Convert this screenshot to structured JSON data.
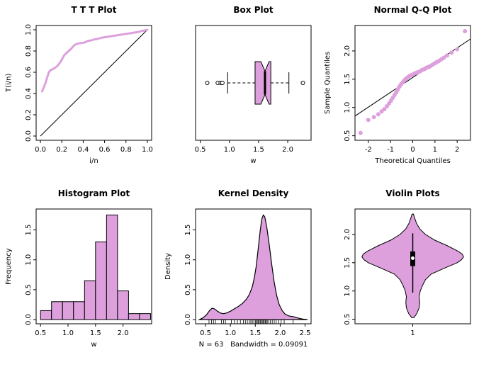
{
  "colors": {
    "accent": "#DDA0DD",
    "axis": "#000000",
    "background": "#ffffff"
  },
  "chart_data": [
    {
      "type": "ttt",
      "title": "T T T Plot",
      "xlabel": "i/n",
      "ylabel": "T(i/n)",
      "xlim": [
        -0.04,
        1.04
      ],
      "ylim": [
        -0.04,
        1.04
      ],
      "xticks": [
        0,
        0.2,
        0.4,
        0.6,
        0.8,
        1
      ],
      "xtick_labels": [
        "0.0",
        "0.2",
        "0.4",
        "0.6",
        "0.8",
        "1.0"
      ],
      "yticks": [
        0,
        0.2,
        0.4,
        0.6,
        0.8,
        1
      ],
      "ytick_labels": [
        "0.0",
        "0.2",
        "0.4",
        "0.6",
        "0.8",
        "1.0"
      ],
      "refline": [
        [
          0,
          0
        ],
        [
          1,
          1
        ]
      ],
      "points": [
        [
          0.016,
          0.42
        ],
        [
          0.032,
          0.46
        ],
        [
          0.048,
          0.5
        ],
        [
          0.063,
          0.55
        ],
        [
          0.079,
          0.6
        ],
        [
          0.095,
          0.62
        ],
        [
          0.127,
          0.635
        ],
        [
          0.159,
          0.66
        ],
        [
          0.19,
          0.7
        ],
        [
          0.222,
          0.76
        ],
        [
          0.254,
          0.79
        ],
        [
          0.286,
          0.82
        ],
        [
          0.317,
          0.855
        ],
        [
          0.349,
          0.87
        ],
        [
          0.381,
          0.875
        ],
        [
          0.413,
          0.88
        ],
        [
          0.444,
          0.895
        ],
        [
          0.476,
          0.9
        ],
        [
          0.508,
          0.91
        ],
        [
          0.54,
          0.915
        ],
        [
          0.571,
          0.925
        ],
        [
          0.603,
          0.93
        ],
        [
          0.635,
          0.935
        ],
        [
          0.667,
          0.94
        ],
        [
          0.698,
          0.945
        ],
        [
          0.73,
          0.95
        ],
        [
          0.762,
          0.955
        ],
        [
          0.794,
          0.96
        ],
        [
          0.825,
          0.965
        ],
        [
          0.857,
          0.97
        ],
        [
          0.889,
          0.975
        ],
        [
          0.921,
          0.98
        ],
        [
          0.952,
          0.99
        ],
        [
          0.984,
          0.995
        ],
        [
          1,
          1
        ]
      ]
    },
    {
      "type": "boxplot",
      "title": "Box Plot",
      "xlabel": "w",
      "ylabel": "",
      "xlim": [
        0.42,
        2.4
      ],
      "ylim": [
        0,
        1
      ],
      "xticks": [
        0.5,
        1,
        1.5,
        2
      ],
      "xtick_labels": [
        "0.5",
        "1.0",
        "1.5",
        "2.0"
      ],
      "yticks": [],
      "ytick_labels": [],
      "stats": {
        "whisker_low": 0.97,
        "q1": 1.44,
        "median": 1.61,
        "notch_low": 1.54,
        "notch_high": 1.68,
        "q3": 1.71,
        "whisker_high": 2.02
      },
      "outliers": [
        0.62,
        0.8,
        0.85,
        0.88,
        2.26
      ]
    },
    {
      "type": "qq",
      "title": "Normal Q-Q Plot",
      "xlabel": "Theoretical Quantiles",
      "ylabel": "Sample Quantiles",
      "xlim": [
        -2.6,
        2.6
      ],
      "ylim": [
        0.42,
        2.45
      ],
      "xticks": [
        -2,
        -1,
        0,
        1,
        2
      ],
      "xtick_labels": [
        "-2",
        "-1",
        "0",
        "1",
        "2"
      ],
      "yticks": [
        0.5,
        1,
        1.5,
        2
      ],
      "ytick_labels": [
        "0.5",
        "1.0",
        "1.5",
        "2.0"
      ],
      "line": {
        "slope": 0.262,
        "intercept": 1.53
      },
      "points": [
        [
          -2.35,
          0.55
        ],
        [
          -2.0,
          0.78
        ],
        [
          -1.75,
          0.83
        ],
        [
          -1.55,
          0.88
        ],
        [
          -1.4,
          0.93
        ],
        [
          -1.28,
          0.97
        ],
        [
          -1.17,
          1.02
        ],
        [
          -1.07,
          1.07
        ],
        [
          -0.98,
          1.12
        ],
        [
          -0.9,
          1.17
        ],
        [
          -0.82,
          1.22
        ],
        [
          -0.74,
          1.27
        ],
        [
          -0.67,
          1.32
        ],
        [
          -0.6,
          1.37
        ],
        [
          -0.53,
          1.41
        ],
        [
          -0.46,
          1.44
        ],
        [
          -0.4,
          1.47
        ],
        [
          -0.33,
          1.5
        ],
        [
          -0.27,
          1.52
        ],
        [
          -0.2,
          1.54
        ],
        [
          -0.14,
          1.56
        ],
        [
          -0.07,
          1.57
        ],
        [
          0.0,
          1.58
        ],
        [
          0.07,
          1.6
        ],
        [
          0.14,
          1.61
        ],
        [
          0.2,
          1.62
        ],
        [
          0.27,
          1.63
        ],
        [
          0.33,
          1.64
        ],
        [
          0.4,
          1.66
        ],
        [
          0.46,
          1.67
        ],
        [
          0.53,
          1.68
        ],
        [
          0.6,
          1.7
        ],
        [
          0.67,
          1.71
        ],
        [
          0.74,
          1.72
        ],
        [
          0.82,
          1.74
        ],
        [
          0.9,
          1.76
        ],
        [
          0.98,
          1.78
        ],
        [
          1.07,
          1.8
        ],
        [
          1.17,
          1.82
        ],
        [
          1.28,
          1.85
        ],
        [
          1.4,
          1.88
        ],
        [
          1.55,
          1.92
        ],
        [
          1.75,
          1.97
        ],
        [
          2.0,
          2.03
        ],
        [
          2.35,
          2.35
        ]
      ]
    },
    {
      "type": "histogram",
      "title": "Histogram Plot",
      "xlabel": "w",
      "ylabel": "Frequency",
      "xlim": [
        0.42,
        2.52
      ],
      "ylim": [
        -0.07,
        1.85
      ],
      "xticks": [
        0.5,
        1,
        1.5,
        2
      ],
      "xtick_labels": [
        "0.5",
        "1.0",
        "1.5",
        "2.0"
      ],
      "yticks": [
        0,
        0.5,
        1,
        1.5
      ],
      "ytick_labels": [
        "0.0",
        "0.5",
        "1.0",
        "1.5"
      ],
      "breaks": [
        0.5,
        0.7,
        0.9,
        1.1,
        1.3,
        1.5,
        1.7,
        1.9,
        2.1,
        2.3,
        2.5
      ],
      "heights": [
        0.15,
        0.3,
        0.3,
        0.3,
        0.65,
        1.3,
        1.75,
        0.48,
        0.1,
        0.1
      ]
    },
    {
      "type": "density",
      "title": "Kernel Density",
      "xlabel": "N = 63   Bandwidth = 0.09091",
      "ylabel": "Density",
      "xlim": [
        0.3,
        2.62
      ],
      "ylim": [
        -0.07,
        1.85
      ],
      "xticks": [
        0.5,
        1,
        1.5,
        2,
        2.5
      ],
      "xtick_labels": [
        "0.5",
        "1.0",
        "1.5",
        "2.0",
        "2.5"
      ],
      "yticks": [
        0,
        0.5,
        1,
        1.5
      ],
      "ytick_labels": [
        "0.0",
        "0.5",
        "1.0",
        "1.5"
      ],
      "curve": [
        [
          0.38,
          0
        ],
        [
          0.45,
          0.03
        ],
        [
          0.52,
          0.08
        ],
        [
          0.58,
          0.15
        ],
        [
          0.63,
          0.19
        ],
        [
          0.68,
          0.18
        ],
        [
          0.74,
          0.14
        ],
        [
          0.8,
          0.11
        ],
        [
          0.86,
          0.1
        ],
        [
          0.92,
          0.11
        ],
        [
          1.0,
          0.14
        ],
        [
          1.08,
          0.18
        ],
        [
          1.16,
          0.22
        ],
        [
          1.24,
          0.27
        ],
        [
          1.32,
          0.34
        ],
        [
          1.38,
          0.42
        ],
        [
          1.44,
          0.55
        ],
        [
          1.48,
          0.7
        ],
        [
          1.52,
          0.9
        ],
        [
          1.56,
          1.2
        ],
        [
          1.6,
          1.5
        ],
        [
          1.63,
          1.68
        ],
        [
          1.66,
          1.75
        ],
        [
          1.69,
          1.72
        ],
        [
          1.73,
          1.55
        ],
        [
          1.78,
          1.25
        ],
        [
          1.83,
          0.92
        ],
        [
          1.88,
          0.62
        ],
        [
          1.93,
          0.4
        ],
        [
          1.98,
          0.25
        ],
        [
          2.04,
          0.15
        ],
        [
          2.1,
          0.09
        ],
        [
          2.18,
          0.06
        ],
        [
          2.26,
          0.05
        ],
        [
          2.34,
          0.03
        ],
        [
          2.44,
          0.01
        ],
        [
          2.55,
          0
        ]
      ],
      "rug": [
        0.57,
        0.62,
        0.66,
        0.7,
        0.82,
        0.86,
        0.9,
        1.02,
        1.08,
        1.14,
        1.2,
        1.26,
        1.3,
        1.34,
        1.38,
        1.41,
        1.44,
        1.47,
        1.5,
        1.52,
        1.54,
        1.56,
        1.58,
        1.6,
        1.62,
        1.64,
        1.66,
        1.68,
        1.7,
        1.72,
        1.74,
        1.77,
        1.8,
        1.84,
        1.88,
        1.92,
        1.97,
        2.02,
        2.08,
        2.26
      ]
    },
    {
      "type": "violin",
      "title": "Violin Plots",
      "xlabel": "",
      "ylabel": "",
      "xlim": [
        0.5,
        1.5
      ],
      "ylim": [
        0.42,
        2.45
      ],
      "xticks": [
        1
      ],
      "xtick_labels": [
        "1"
      ],
      "yticks": [
        0.5,
        1,
        1.5,
        2
      ],
      "ytick_labels": [
        "0.5",
        "1.0",
        "1.5",
        "2.0"
      ],
      "profile": [
        [
          0.53,
          0.01
        ],
        [
          0.6,
          0.035
        ],
        [
          0.7,
          0.055
        ],
        [
          0.8,
          0.06
        ],
        [
          0.9,
          0.055
        ],
        [
          1.0,
          0.065
        ],
        [
          1.1,
          0.085
        ],
        [
          1.2,
          0.11
        ],
        [
          1.3,
          0.16
        ],
        [
          1.4,
          0.27
        ],
        [
          1.5,
          0.385
        ],
        [
          1.55,
          0.42
        ],
        [
          1.6,
          0.44
        ],
        [
          1.65,
          0.43
        ],
        [
          1.7,
          0.395
        ],
        [
          1.8,
          0.3
        ],
        [
          1.9,
          0.19
        ],
        [
          2.0,
          0.11
        ],
        [
          2.1,
          0.06
        ],
        [
          2.2,
          0.032
        ],
        [
          2.3,
          0.015
        ],
        [
          2.36,
          0.006
        ]
      ],
      "stats": {
        "whisker_low": 0.97,
        "q1": 1.44,
        "median": 1.58,
        "q3": 1.7,
        "whisker_high": 2.02
      }
    }
  ]
}
